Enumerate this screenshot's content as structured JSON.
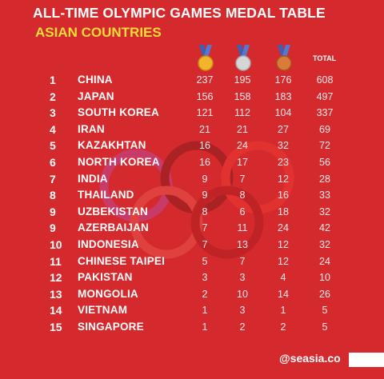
{
  "title": "ALL-TIME OLYMPIC GAMES MEDAL TABLE",
  "subtitle": "ASIAN COUNTRIES",
  "columns": {
    "gold_icon": "gold-medal-icon",
    "silver_icon": "silver-medal-icon",
    "bronze_icon": "bronze-medal-icon",
    "total": "TOTAL"
  },
  "colors": {
    "background": "#d42a2e",
    "subtitle": "#f5dc3a",
    "gold": "#f2b42a",
    "silver": "#d6d6d6",
    "bronze": "#d97c3a",
    "ribbon": "#3e5fb5"
  },
  "rows": [
    {
      "rank": "1",
      "country": "CHINA",
      "gold": "237",
      "silver": "195",
      "bronze": "176",
      "total": "608"
    },
    {
      "rank": "2",
      "country": "JAPAN",
      "gold": "156",
      "silver": "158",
      "bronze": "183",
      "total": "497"
    },
    {
      "rank": "3",
      "country": "SOUTH KOREA",
      "gold": "121",
      "silver": "112",
      "bronze": "104",
      "total": "337"
    },
    {
      "rank": "4",
      "country": "IRAN",
      "gold": "21",
      "silver": "21",
      "bronze": "27",
      "total": "69"
    },
    {
      "rank": "5",
      "country": "KAZAKHTAN",
      "gold": "16",
      "silver": "24",
      "bronze": "32",
      "total": "72"
    },
    {
      "rank": "6",
      "country": "NORTH KOREA",
      "gold": "16",
      "silver": "17",
      "bronze": "23",
      "total": "56"
    },
    {
      "rank": "7",
      "country": "INDIA",
      "gold": "9",
      "silver": "7",
      "bronze": "12",
      "total": "28"
    },
    {
      "rank": "8",
      "country": "THAILAND",
      "gold": "9",
      "silver": "8",
      "bronze": "16",
      "total": "33"
    },
    {
      "rank": "9",
      "country": "UZBEKISTAN",
      "gold": "8",
      "silver": "6",
      "bronze": "18",
      "total": "32"
    },
    {
      "rank": "9",
      "country": "AZERBAIJAN",
      "gold": "7",
      "silver": "11",
      "bronze": "24",
      "total": "42"
    },
    {
      "rank": "10",
      "country": "INDONESIA",
      "gold": "7",
      "silver": "13",
      "bronze": "12",
      "total": "32"
    },
    {
      "rank": "11",
      "country": "CHINESE TAIPEI",
      "gold": "5",
      "silver": "7",
      "bronze": "12",
      "total": "24"
    },
    {
      "rank": "12",
      "country": "PAKISTAN",
      "gold": "3",
      "silver": "3",
      "bronze": "4",
      "total": "10"
    },
    {
      "rank": "13",
      "country": "MONGOLIA",
      "gold": "2",
      "silver": "10",
      "bronze": "14",
      "total": "26"
    },
    {
      "rank": "14",
      "country": "VIETNAM",
      "gold": "1",
      "silver": "3",
      "bronze": "1",
      "total": "5"
    },
    {
      "rank": "15",
      "country": "SINGAPORE",
      "gold": "1",
      "silver": "2",
      "bronze": "2",
      "total": "5"
    }
  ],
  "footer": {
    "handle": "@seasia.co"
  }
}
